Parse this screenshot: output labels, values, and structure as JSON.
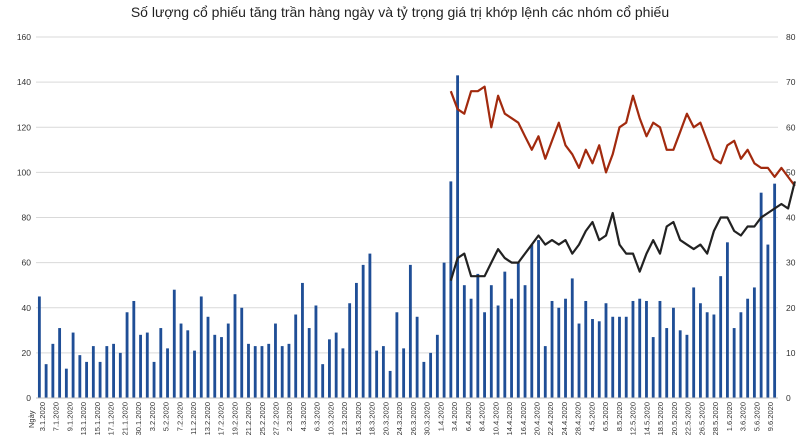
{
  "chart_data": {
    "type": "bar",
    "title": "Số lượng cổ phiếu tăng trần hàng ngày và tỷ trọng giá trị khớp lệnh các nhóm cổ phiếu",
    "xlabel": "Ngày",
    "ylim_left": [
      0,
      160
    ],
    "ylim_right": [
      0,
      80
    ],
    "yticks_left": [
      0,
      20,
      40,
      60,
      80,
      100,
      120,
      140,
      160
    ],
    "yticks_right": [
      0,
      10,
      20,
      30,
      40,
      50,
      60,
      70,
      80
    ],
    "grid": true,
    "legend": "none",
    "colors": {
      "bars": "#1f4e96",
      "series_1": "#a22a0e",
      "series_2": "#222222"
    },
    "x_tick_labels": [
      "3.1.2020",
      "7.1.2020",
      "9.1.2020",
      "13.1.2020",
      "15.1.2020",
      "17.1.2020",
      "21.1.2020",
      "30.1.2020",
      "3.2.2020",
      "5.2.2020",
      "7.2.2020",
      "11.2.2020",
      "13.2.2020",
      "17.2.2020",
      "19.2.2020",
      "21.2.2020",
      "25.2.2020",
      "27.2.2020",
      "2.3.2020",
      "4.3.2020",
      "6.3.2020",
      "10.3.2020",
      "12.3.2020",
      "16.3.2020",
      "18.3.2020",
      "20.3.2020",
      "24.3.2020",
      "26.3.2020",
      "30.3.2020",
      "1.4.2020",
      "3.4.2020",
      "6.4.2020",
      "8.4.2020",
      "10.4.2020",
      "14.4.2020",
      "16.4.2020",
      "20.4.2020",
      "22.4.2020",
      "24.4.2020",
      "28.4.2020",
      "4.5.2020",
      "6.5.2020",
      "8.5.2020",
      "12.5.2020",
      "14.5.2020",
      "18.5.2020",
      "20.5.2020",
      "22.5.2020",
      "26.5.2020",
      "28.5.2020",
      "1.6.2020",
      "3.6.2020",
      "5.6.2020",
      "9.6.2020"
    ],
    "bars": {
      "axis": "left",
      "values": [
        45,
        15,
        24,
        31,
        13,
        29,
        19,
        16,
        23,
        16,
        23,
        24,
        20,
        38,
        43,
        28,
        29,
        16,
        31,
        22,
        48,
        33,
        30,
        21,
        45,
        36,
        28,
        27,
        33,
        46,
        40,
        24,
        23,
        23,
        24,
        33,
        23,
        24,
        37,
        51,
        31,
        41,
        15,
        26,
        29,
        22,
        42,
        51,
        59,
        64,
        21,
        23,
        12,
        38,
        22,
        59,
        36,
        16,
        20,
        28,
        60,
        96,
        143,
        50,
        44,
        55,
        38,
        50,
        41,
        56,
        44,
        60,
        50,
        68,
        70,
        23,
        43,
        40,
        44,
        53,
        33,
        43,
        35,
        34,
        42,
        36,
        36,
        36,
        43,
        44,
        43,
        27,
        43,
        31,
        40,
        30,
        28,
        49,
        42,
        38,
        37,
        54,
        69,
        31,
        38,
        44,
        49,
        91,
        68,
        95
      ]
    },
    "series": [
      {
        "axis": "right",
        "color": "#a22a0e",
        "start_bar": 61,
        "values": [
          68,
          64,
          63,
          68,
          68,
          69,
          60,
          67,
          63,
          62,
          61,
          58,
          55,
          58,
          53,
          57,
          61,
          56,
          54,
          51,
          55,
          52,
          56,
          50,
          54,
          60,
          61,
          67,
          62,
          58,
          61,
          60,
          55,
          55,
          59,
          63,
          60,
          61,
          57,
          53,
          52,
          56,
          57,
          53,
          55,
          52,
          51,
          51,
          49,
          51,
          49,
          47
        ]
      },
      {
        "axis": "right",
        "color": "#222222",
        "start_bar": 61,
        "values": [
          26,
          31,
          32,
          27,
          27,
          27,
          30,
          33,
          31,
          30,
          30,
          32,
          34,
          36,
          34,
          35,
          34,
          35,
          32,
          34,
          37,
          39,
          35,
          36,
          41,
          34,
          32,
          32,
          28,
          32,
          35,
          32,
          38,
          39,
          35,
          34,
          33,
          34,
          32,
          37,
          40,
          40,
          37,
          36,
          38,
          38,
          40,
          41,
          42,
          43,
          42,
          48
        ]
      }
    ]
  }
}
